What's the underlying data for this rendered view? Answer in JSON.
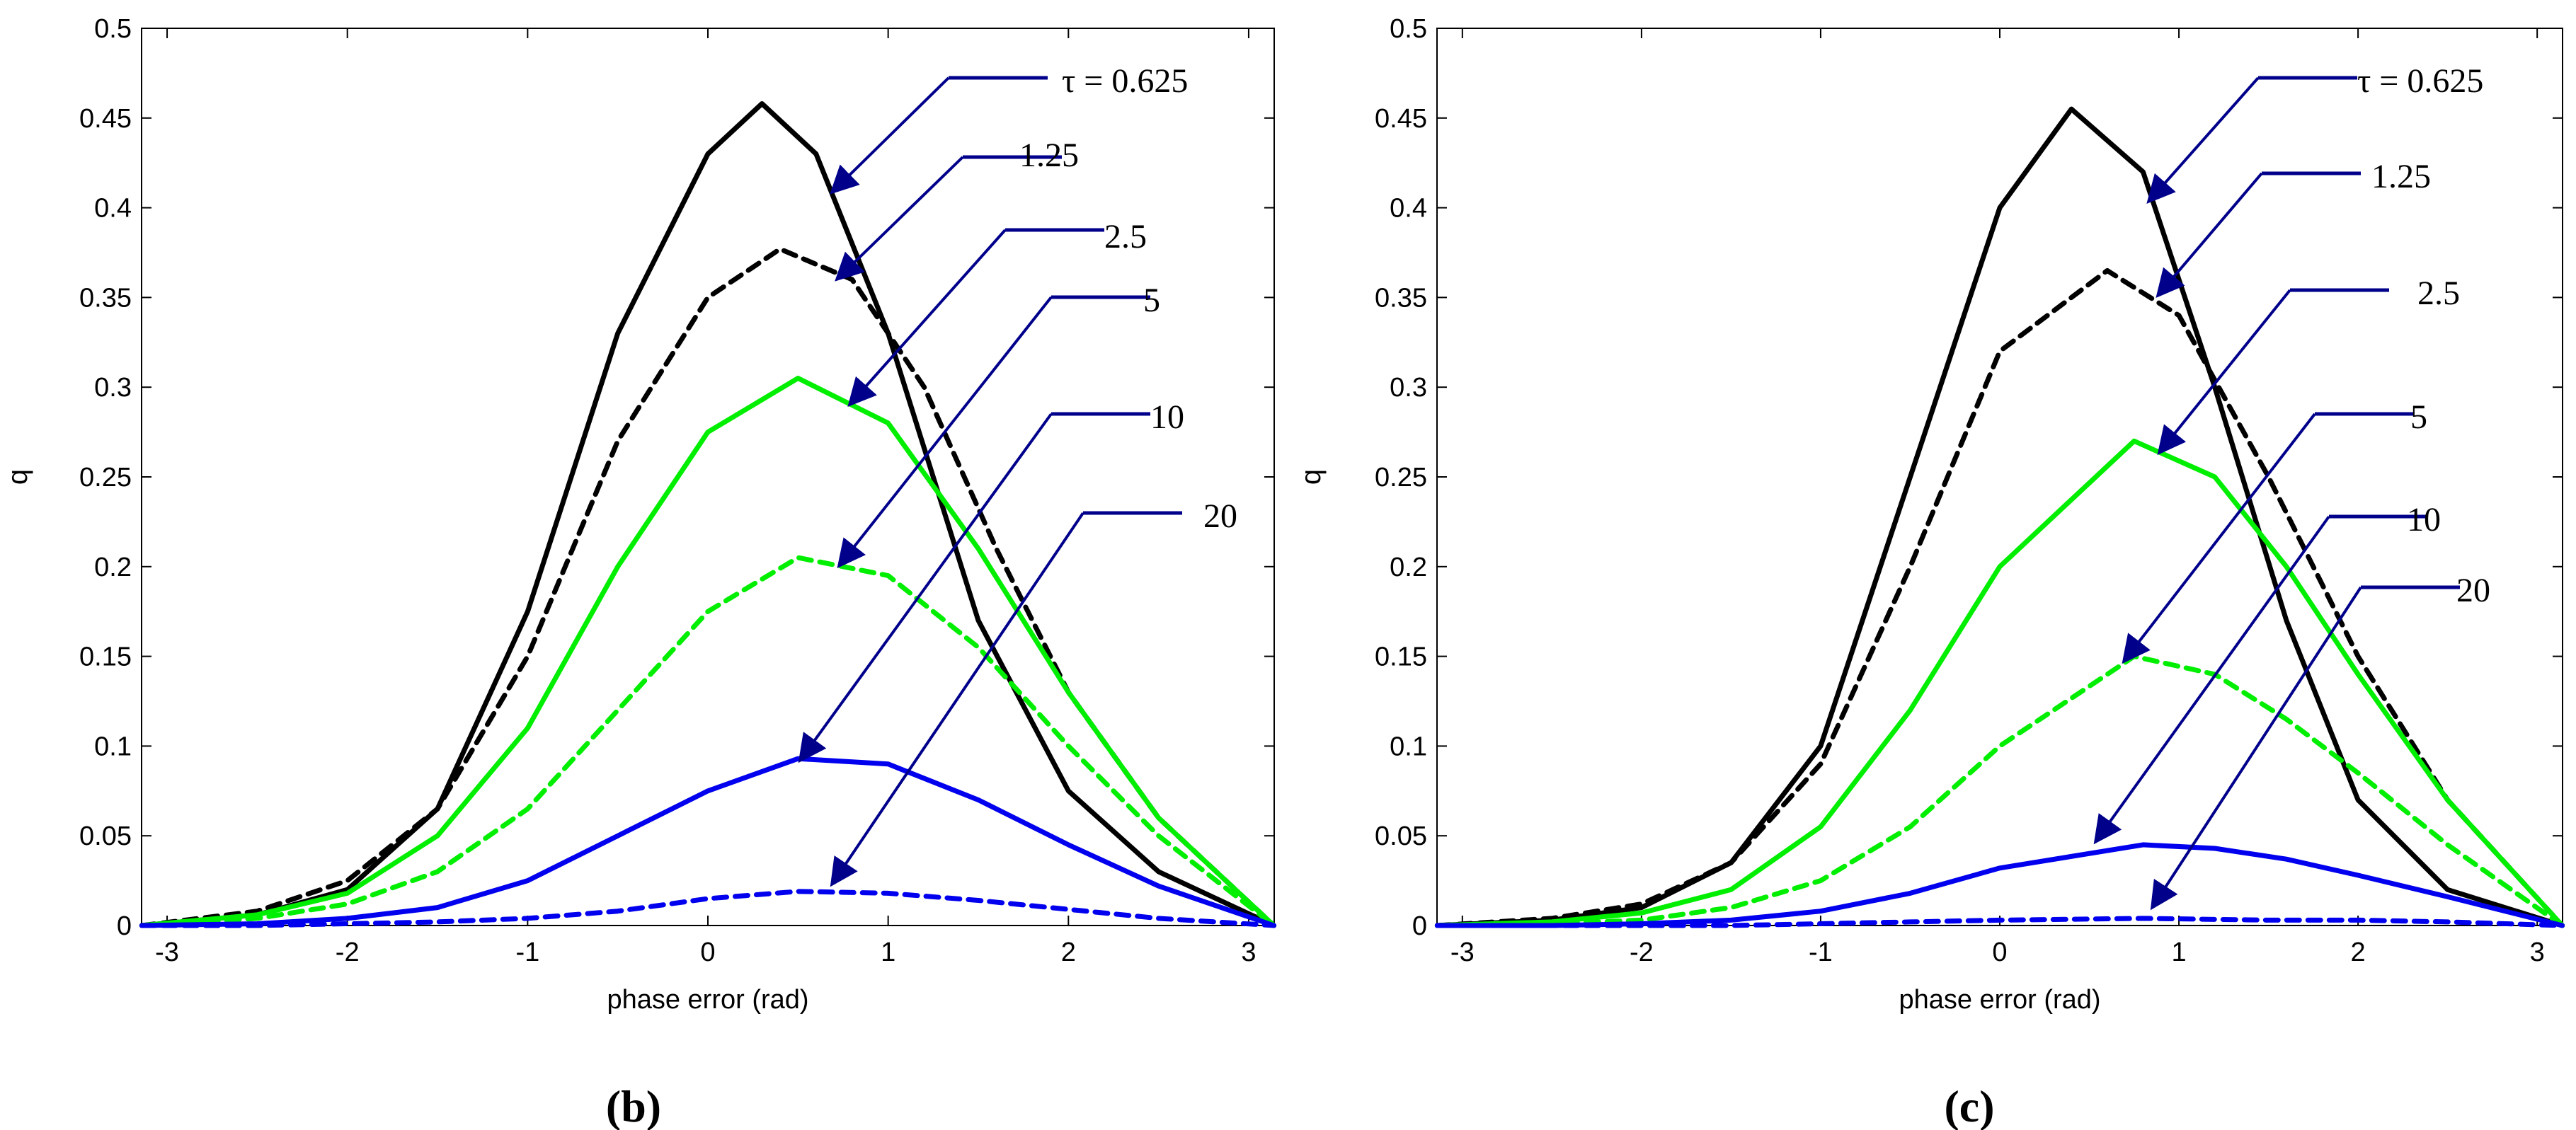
{
  "chart_data": [
    {
      "type": "line",
      "panel_label": "(b)",
      "xlabel": "phase error (rad)",
      "ylabel": "q",
      "xlim": [
        -3.1416,
        3.1416
      ],
      "ylim": [
        0,
        0.5
      ],
      "xticks": [
        -3,
        -2,
        -1,
        0,
        1,
        2,
        3
      ],
      "yticks": [
        0,
        0.05,
        0.1,
        0.15,
        0.2,
        0.25,
        0.3,
        0.35,
        0.4,
        0.45,
        0.5
      ],
      "ytick_labels": [
        "0",
        "0.05",
        "0.1",
        "0.15",
        "0.2",
        "0.25",
        "0.3",
        "0.35",
        "0.4",
        "0.45",
        "0.5"
      ],
      "series": [
        {
          "name": "τ = 0.625",
          "color": "#000000",
          "style": "solid",
          "x": [
            -3.14,
            -2.5,
            -2.0,
            -1.5,
            -1.0,
            -0.5,
            0.0,
            0.3,
            0.6,
            1.0,
            1.5,
            2.0,
            2.5,
            3.14
          ],
          "y": [
            0.0,
            0.006,
            0.02,
            0.065,
            0.175,
            0.33,
            0.43,
            0.458,
            0.43,
            0.33,
            0.17,
            0.075,
            0.03,
            0.0
          ]
        },
        {
          "name": "1.25",
          "color": "#000000",
          "style": "dashed",
          "x": [
            -3.14,
            -2.5,
            -2.0,
            -1.5,
            -1.0,
            -0.5,
            0.0,
            0.4,
            0.8,
            1.2,
            1.6,
            2.0,
            2.5,
            3.14
          ],
          "y": [
            0.0,
            0.008,
            0.025,
            0.065,
            0.15,
            0.27,
            0.35,
            0.377,
            0.36,
            0.3,
            0.21,
            0.13,
            0.06,
            0.0
          ]
        },
        {
          "name": "2.5",
          "color": "#00ee00",
          "style": "solid",
          "x": [
            -3.14,
            -2.5,
            -2.0,
            -1.5,
            -1.0,
            -0.5,
            0.0,
            0.5,
            1.0,
            1.5,
            2.0,
            2.5,
            3.14
          ],
          "y": [
            0.0,
            0.006,
            0.018,
            0.05,
            0.11,
            0.2,
            0.275,
            0.305,
            0.28,
            0.21,
            0.13,
            0.06,
            0.0
          ]
        },
        {
          "name": "5",
          "color": "#00ee00",
          "style": "dashed",
          "x": [
            -3.14,
            -2.5,
            -2.0,
            -1.5,
            -1.0,
            -0.5,
            0.0,
            0.5,
            1.0,
            1.5,
            2.0,
            2.5,
            3.14
          ],
          "y": [
            0.0,
            0.004,
            0.012,
            0.03,
            0.065,
            0.12,
            0.175,
            0.205,
            0.195,
            0.155,
            0.1,
            0.05,
            0.0
          ]
        },
        {
          "name": "10",
          "color": "#0000ee",
          "style": "solid",
          "x": [
            -3.14,
            -2.5,
            -2.0,
            -1.5,
            -1.0,
            -0.5,
            0.0,
            0.5,
            1.0,
            1.5,
            2.0,
            2.5,
            3.14
          ],
          "y": [
            0.0,
            0.001,
            0.004,
            0.01,
            0.025,
            0.05,
            0.075,
            0.093,
            0.09,
            0.07,
            0.045,
            0.022,
            0.0
          ]
        },
        {
          "name": "20",
          "color": "#0000ee",
          "style": "dashed",
          "x": [
            -3.14,
            -2.5,
            -2.0,
            -1.5,
            -1.0,
            -0.5,
            0.0,
            0.5,
            1.0,
            1.5,
            2.0,
            2.5,
            3.14
          ],
          "y": [
            0.0,
            0.0,
            0.001,
            0.002,
            0.004,
            0.008,
            0.015,
            0.019,
            0.018,
            0.014,
            0.009,
            0.004,
            0.0
          ]
        }
      ],
      "annotations": [
        {
          "label": "τ = 0.625",
          "target_series": "τ = 0.625"
        },
        {
          "label": "1.25",
          "target_series": "1.25"
        },
        {
          "label": "2.5",
          "target_series": "2.5"
        },
        {
          "label": "5",
          "target_series": "5"
        },
        {
          "label": "10",
          "target_series": "10"
        },
        {
          "label": "20",
          "target_series": "20"
        }
      ]
    },
    {
      "type": "line",
      "panel_label": "(c)",
      "xlabel": "phase error (rad)",
      "ylabel": "q",
      "xlim": [
        -3.1416,
        3.1416
      ],
      "ylim": [
        0,
        0.5
      ],
      "xticks": [
        -3,
        -2,
        -1,
        0,
        1,
        2,
        3
      ],
      "yticks": [
        0,
        0.05,
        0.1,
        0.15,
        0.2,
        0.25,
        0.3,
        0.35,
        0.4,
        0.45,
        0.5
      ],
      "ytick_labels": [
        "0",
        "0.05",
        "0.1",
        "0.15",
        "0.2",
        "0.25",
        "0.3",
        "0.35",
        "0.4",
        "0.45",
        "0.5"
      ],
      "series": [
        {
          "name": "τ = 0.625",
          "color": "#000000",
          "style": "solid",
          "x": [
            -3.14,
            -2.5,
            -2.0,
            -1.5,
            -1.0,
            -0.5,
            0.0,
            0.4,
            0.8,
            1.2,
            1.6,
            2.0,
            2.5,
            3.14
          ],
          "y": [
            0.0,
            0.003,
            0.01,
            0.035,
            0.1,
            0.25,
            0.4,
            0.455,
            0.42,
            0.3,
            0.17,
            0.07,
            0.02,
            0.0
          ]
        },
        {
          "name": "1.25",
          "color": "#000000",
          "style": "dashed",
          "x": [
            -3.14,
            -2.5,
            -2.0,
            -1.5,
            -1.0,
            -0.5,
            0.0,
            0.6,
            1.0,
            1.5,
            2.0,
            2.5,
            3.14
          ],
          "y": [
            0.0,
            0.004,
            0.012,
            0.035,
            0.09,
            0.2,
            0.32,
            0.365,
            0.34,
            0.25,
            0.15,
            0.07,
            0.0
          ]
        },
        {
          "name": "2.5",
          "color": "#00ee00",
          "style": "solid",
          "x": [
            -3.14,
            -2.5,
            -2.0,
            -1.5,
            -1.0,
            -0.5,
            0.0,
            0.75,
            1.2,
            1.6,
            2.0,
            2.5,
            3.14
          ],
          "y": [
            0.0,
            0.002,
            0.007,
            0.02,
            0.055,
            0.12,
            0.2,
            0.27,
            0.25,
            0.2,
            0.14,
            0.07,
            0.0
          ]
        },
        {
          "name": "5",
          "color": "#00ee00",
          "style": "dashed",
          "x": [
            -3.14,
            -2.5,
            -2.0,
            -1.5,
            -1.0,
            -0.5,
            0.0,
            0.75,
            1.2,
            1.6,
            2.0,
            2.5,
            3.14
          ],
          "y": [
            0.0,
            0.001,
            0.003,
            0.01,
            0.025,
            0.055,
            0.1,
            0.15,
            0.14,
            0.115,
            0.085,
            0.045,
            0.0
          ]
        },
        {
          "name": "10",
          "color": "#0000ee",
          "style": "solid",
          "x": [
            -3.14,
            -2.5,
            -2.0,
            -1.5,
            -1.0,
            -0.5,
            0.0,
            0.8,
            1.2,
            1.6,
            2.0,
            2.5,
            3.14
          ],
          "y": [
            0.0,
            0.0,
            0.001,
            0.003,
            0.008,
            0.018,
            0.032,
            0.045,
            0.043,
            0.037,
            0.028,
            0.016,
            0.0
          ]
        },
        {
          "name": "20",
          "color": "#0000ee",
          "style": "dashed",
          "x": [
            -3.14,
            -2.5,
            -2.0,
            -1.5,
            -1.0,
            -0.5,
            0.0,
            0.8,
            1.5,
            2.0,
            2.5,
            3.14
          ],
          "y": [
            0.0,
            0.0,
            0.0,
            0.0,
            0.001,
            0.002,
            0.003,
            0.004,
            0.003,
            0.003,
            0.002,
            0.0
          ]
        }
      ],
      "annotations": [
        {
          "label": "τ = 0.625",
          "target_series": "τ = 0.625"
        },
        {
          "label": "1.25",
          "target_series": "1.25"
        },
        {
          "label": "2.5",
          "target_series": "2.5"
        },
        {
          "label": "5",
          "target_series": "5"
        },
        {
          "label": "10",
          "target_series": "10"
        },
        {
          "label": "20",
          "target_series": "20"
        }
      ]
    }
  ],
  "colors": {
    "arrow": "#00008b",
    "axis": "#000000"
  }
}
